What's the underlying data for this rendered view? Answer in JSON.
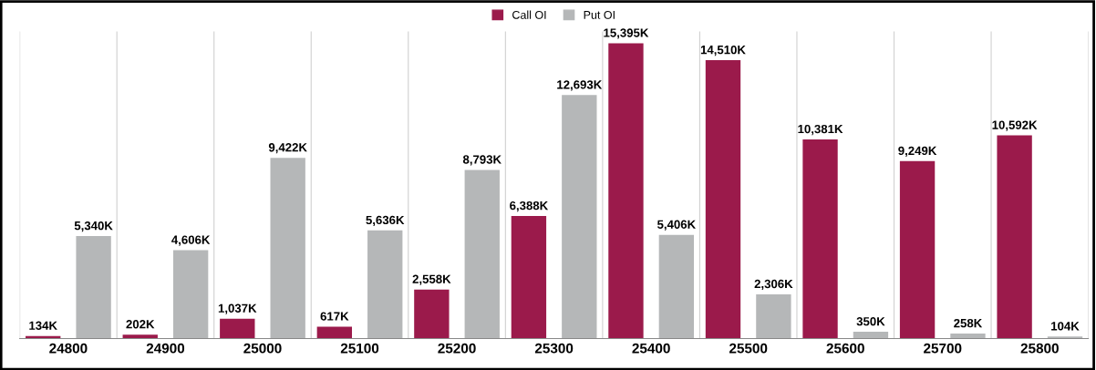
{
  "chart_data": {
    "type": "bar",
    "categories": [
      "24800",
      "24900",
      "25000",
      "25100",
      "25200",
      "25300",
      "25400",
      "25500",
      "25600",
      "25700",
      "25800"
    ],
    "series": [
      {
        "name": "Call OI",
        "color": "#9b1a4b",
        "values": [
          134,
          202,
          1037,
          617,
          2558,
          6388,
          15395,
          14510,
          10381,
          9249,
          10592
        ],
        "value_labels": [
          "134K",
          "202K",
          "1,037K",
          "617K",
          "2,558K",
          "6,388K",
          "15,395K",
          "14,510K",
          "10,381K",
          "9,249K",
          "10,592K"
        ]
      },
      {
        "name": "Put OI",
        "color": "#b5b7b8",
        "values": [
          5340,
          4606,
          9422,
          5636,
          8793,
          12693,
          5406,
          2306,
          350,
          258,
          104
        ],
        "value_labels": [
          "5,340K",
          "4,606K",
          "9,422K",
          "5,636K",
          "8,793K",
          "12,693K",
          "5,406K",
          "2,306K",
          "350K",
          "258K",
          "104K"
        ]
      }
    ],
    "grid": "x",
    "legend": "top",
    "tick_labels": "x"
  }
}
